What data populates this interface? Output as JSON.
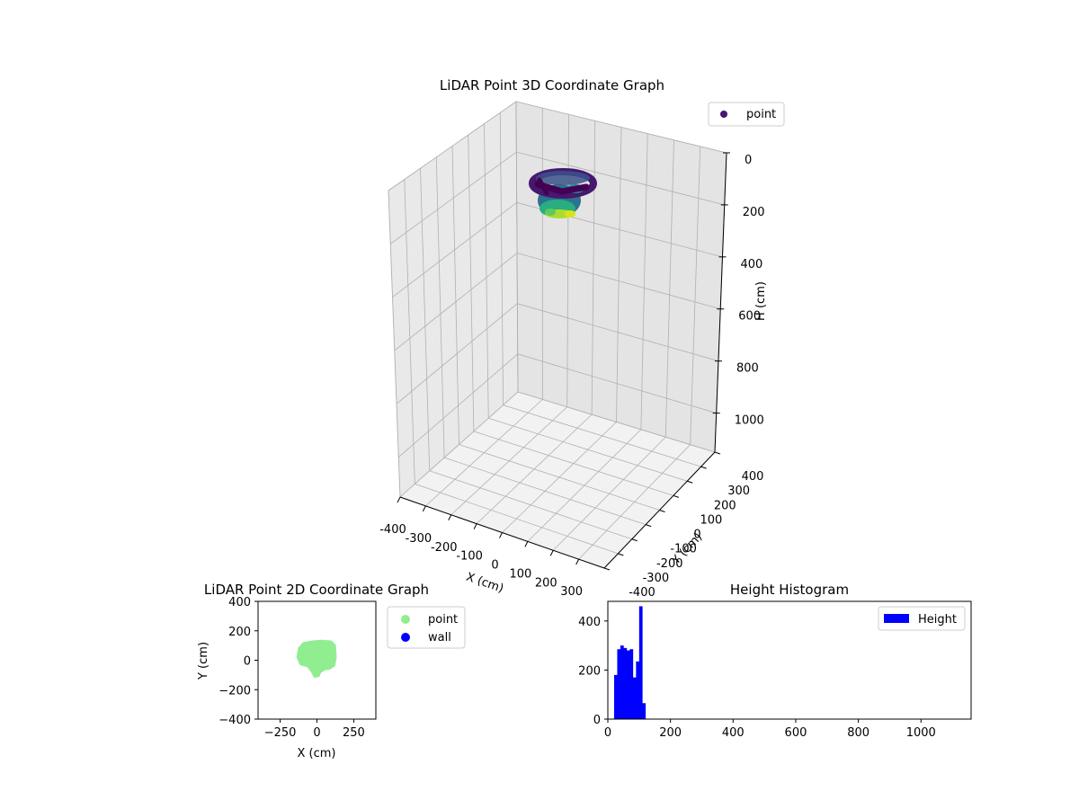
{
  "colors": {
    "point3d": "#46186e",
    "point2d": "#90ee90",
    "wall": "#0000ff",
    "hist": "#0000ff",
    "pane": "#f2f2f2",
    "grid": "#b0b0b0"
  },
  "chart_data": [
    {
      "type": "scatter",
      "title": "LiDAR Point 3D Coordinate Graph",
      "xlabel": "X (cm)",
      "ylabel": "Y (cm)",
      "zlabel": "H (cm)",
      "xlim": [
        -400,
        400
      ],
      "ylim": [
        -400,
        400
      ],
      "zlim": [
        1150,
        0
      ],
      "x_ticks": [
        "-400",
        "-300",
        "-200",
        "-100",
        "0",
        "100",
        "200",
        "300"
      ],
      "y_ticks": [
        "-400",
        "-300",
        "-200",
        "-100",
        "0",
        "100",
        "200",
        "300",
        "400"
      ],
      "z_ticks": [
        "0",
        "200",
        "400",
        "600",
        "800",
        "1000"
      ],
      "legend": [
        "point"
      ],
      "legend_loc": "upper right",
      "colormap": "viridis",
      "cluster": {
        "center_x": 0,
        "center_y": 0,
        "radius_x": 110,
        "radius_y": 110,
        "h_top": 30,
        "h_bottom": 130
      }
    },
    {
      "type": "scatter",
      "title": "LiDAR Point 2D Coordinate Graph",
      "xlabel": "X (cm)",
      "ylabel": "Y (cm)",
      "xlim": [
        -400,
        400
      ],
      "ylim": [
        -400,
        400
      ],
      "x_ticks": [
        "−250",
        "0",
        "250"
      ],
      "y_ticks": [
        "−400",
        "−200",
        "0",
        "200",
        "400"
      ],
      "legend": [
        "point",
        "wall"
      ],
      "legend_loc": "outside right",
      "point_outline": [
        [
          -120,
          80
        ],
        [
          -90,
          115
        ],
        [
          -30,
          125
        ],
        [
          30,
          130
        ],
        [
          95,
          125
        ],
        [
          120,
          100
        ],
        [
          125,
          20
        ],
        [
          115,
          -35
        ],
        [
          85,
          -55
        ],
        [
          50,
          -60
        ],
        [
          20,
          -80
        ],
        [
          10,
          -105
        ],
        [
          -15,
          -110
        ],
        [
          -30,
          -80
        ],
        [
          -60,
          -40
        ],
        [
          -110,
          -25
        ],
        [
          -130,
          20
        ]
      ]
    },
    {
      "type": "bar",
      "title": "Height Histogram",
      "xlabel": "",
      "ylabel": "",
      "xlim": [
        0,
        1160
      ],
      "ylim": [
        0,
        480
      ],
      "x_ticks": [
        "0",
        "200",
        "400",
        "600",
        "800",
        "1000"
      ],
      "y_ticks": [
        "0",
        "200",
        "400"
      ],
      "legend": [
        "Height"
      ],
      "legend_loc": "upper right",
      "bin_start": 20,
      "bin_width": 10,
      "values": [
        180,
        285,
        300,
        290,
        280,
        285,
        170,
        235,
        460,
        65
      ]
    }
  ]
}
